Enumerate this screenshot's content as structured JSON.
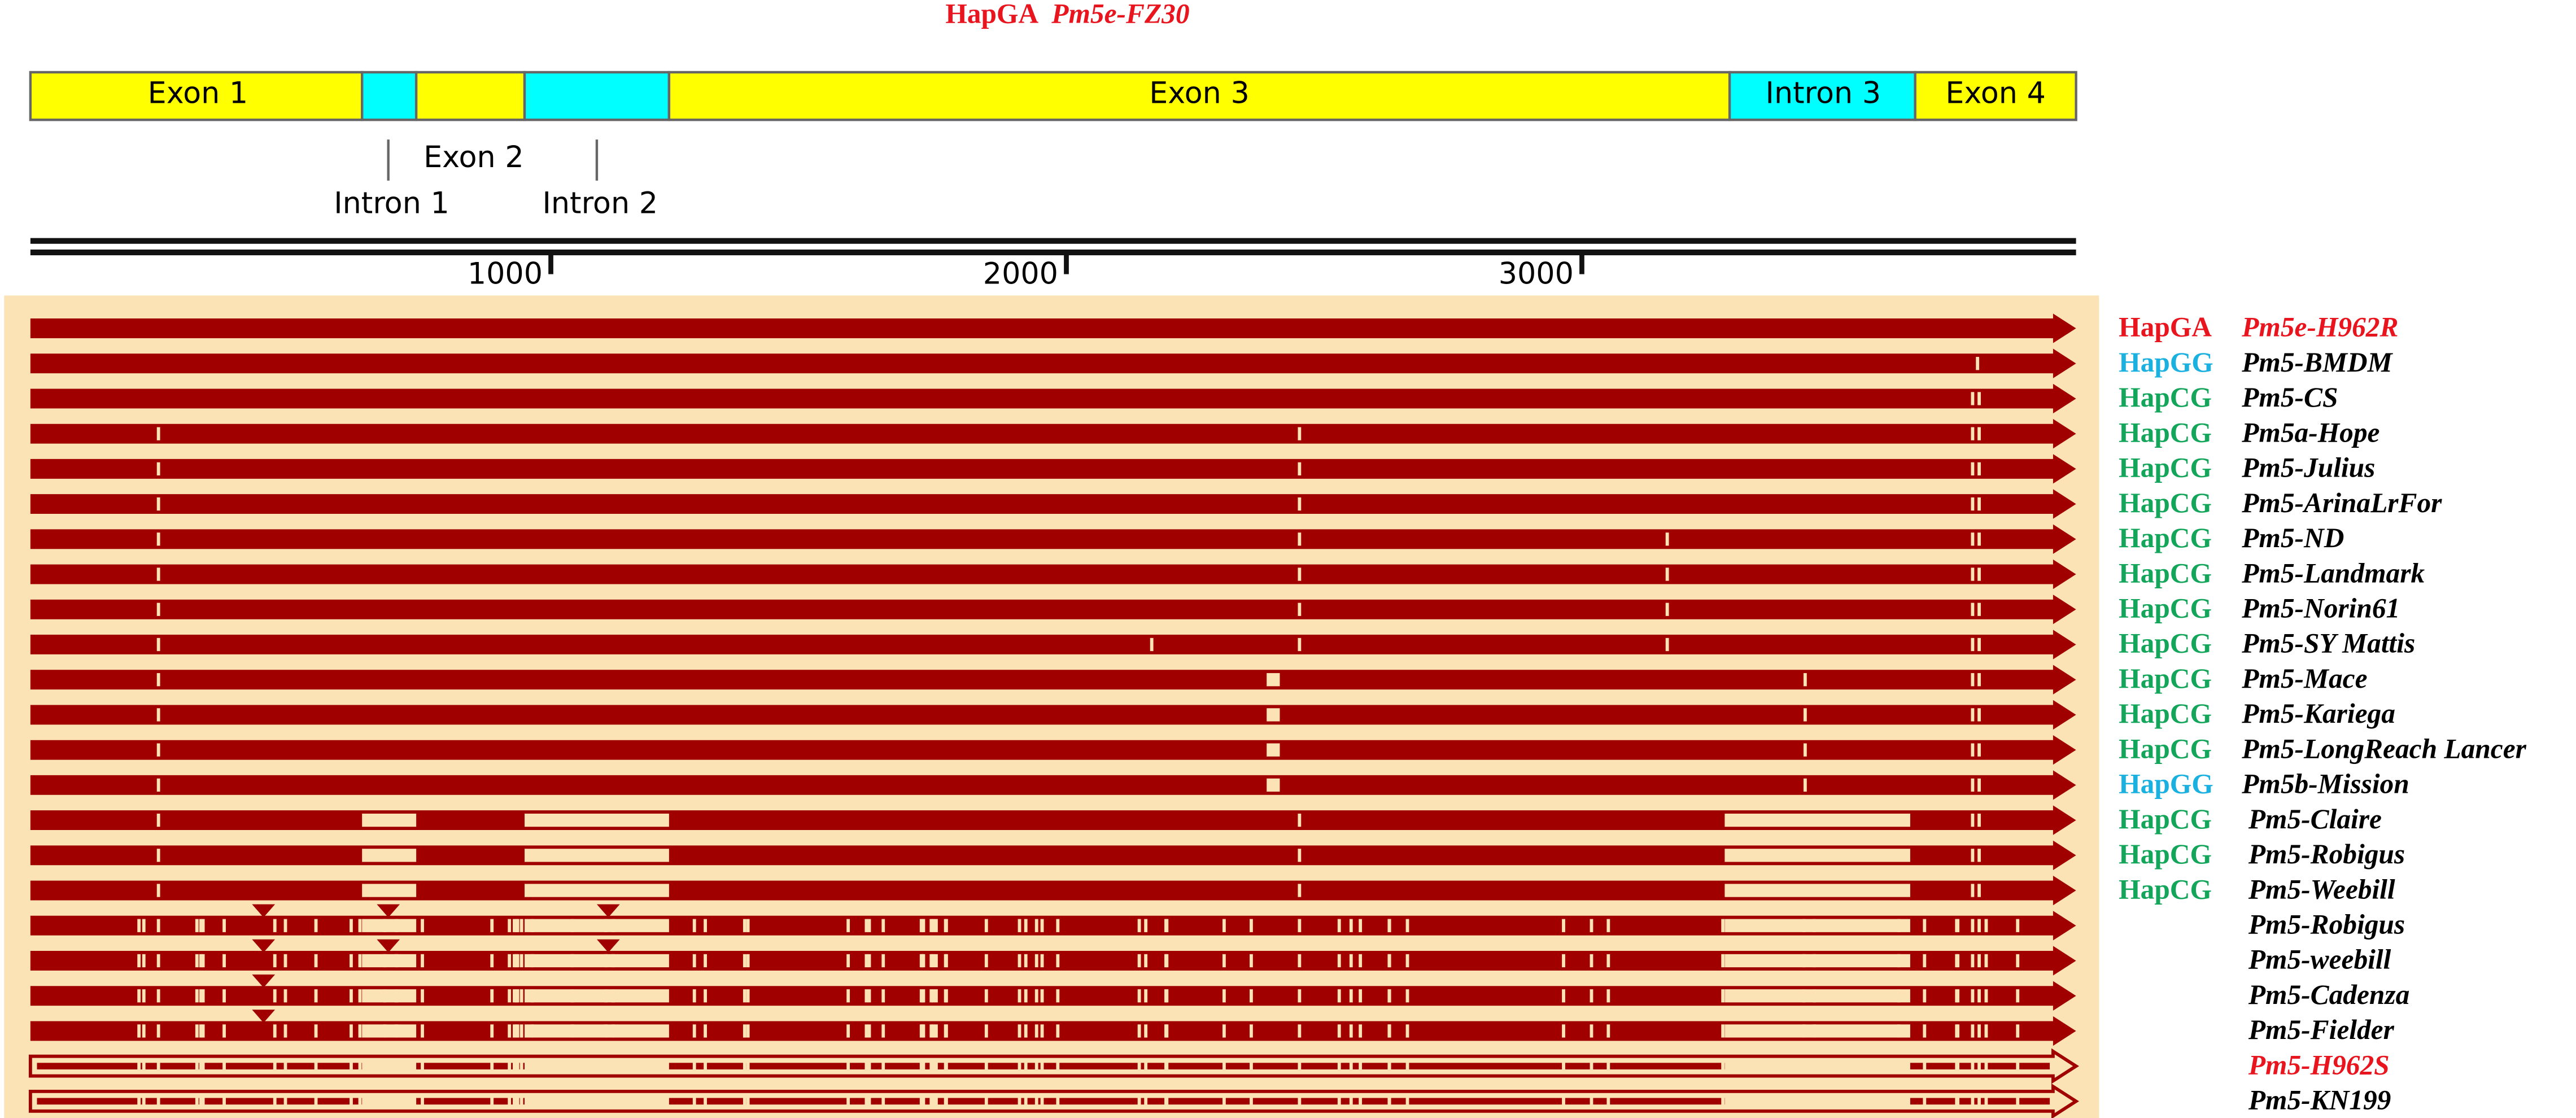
{
  "title": {
    "haplotype": "HapGA",
    "name": "Pm5e-FZ30",
    "color": "#e8141e"
  },
  "gene_structure": {
    "exon_1": "Exon 1",
    "exon_2": "Exon 2",
    "exon_3": "Exon 3",
    "exon_4": "Exon 4",
    "intron_1": "Intron 1",
    "intron_2": "Intron 2",
    "intron_3": "Intron 3"
  },
  "ruler_ticks": [
    1000,
    2000,
    3000
  ],
  "rows": [
    {
      "haplotype": "HapGA",
      "name": "Pm5e-H962R",
      "hap_color": "#e8141e",
      "name_color": "#e8141e"
    },
    {
      "haplotype": "HapGG",
      "name": "Pm5-BMDM",
      "hap_color": "#1ab0e0",
      "name_color": "#000000"
    },
    {
      "haplotype": "HapCG",
      "name": "Pm5-CS",
      "hap_color": "#13a55a",
      "name_color": "#000000"
    },
    {
      "haplotype": "HapCG",
      "name": "Pm5a-Hope",
      "hap_color": "#13a55a",
      "name_color": "#000000"
    },
    {
      "haplotype": "HapCG",
      "name": "Pm5-Julius",
      "hap_color": "#13a55a",
      "name_color": "#000000"
    },
    {
      "haplotype": "HapCG",
      "name": "Pm5-ArinaLrFor",
      "hap_color": "#13a55a",
      "name_color": "#000000"
    },
    {
      "haplotype": "HapCG",
      "name": "Pm5-ND",
      "hap_color": "#13a55a",
      "name_color": "#000000"
    },
    {
      "haplotype": "HapCG",
      "name": "Pm5-Landmark",
      "hap_color": "#13a55a",
      "name_color": "#000000"
    },
    {
      "haplotype": "HapCG",
      "name": "Pm5-Norin61",
      "hap_color": "#13a55a",
      "name_color": "#000000"
    },
    {
      "haplotype": "HapCG",
      "name": "Pm5-SY Mattis",
      "hap_color": "#13a55a",
      "name_color": "#000000"
    },
    {
      "haplotype": "HapCG",
      "name": "Pm5-Mace",
      "hap_color": "#13a55a",
      "name_color": "#000000"
    },
    {
      "haplotype": "HapCG",
      "name": "Pm5-Kariega",
      "hap_color": "#13a55a",
      "name_color": "#000000"
    },
    {
      "haplotype": "HapCG",
      "name": "Pm5-LongReach Lancer",
      "hap_color": "#13a55a",
      "name_color": "#000000"
    },
    {
      "haplotype": "HapGG",
      "name": "Pm5b-Mission",
      "hap_color": "#1ab0e0",
      "name_color": "#000000"
    },
    {
      "haplotype": "HapCG",
      "name": "Pm5-Claire",
      "hap_color": "#13a55a",
      "name_color": "#000000"
    },
    {
      "haplotype": "HapCG",
      "name": "Pm5-Robigus",
      "hap_color": "#13a55a",
      "name_color": "#000000"
    },
    {
      "haplotype": "HapCG",
      "name": "Pm5-Weebill",
      "hap_color": "#13a55a",
      "name_color": "#000000"
    },
    {
      "name": "Pm5-Robigus",
      "name_color": "#000000"
    },
    {
      "name": "Pm5-weebill",
      "name_color": "#000000"
    },
    {
      "name": "Pm5-Cadenza",
      "name_color": "#000000"
    },
    {
      "name": "Pm5-Fielder",
      "name_color": "#000000"
    },
    {
      "name": "Pm5-H962S",
      "name_color": "#e8141e"
    },
    {
      "name": "Pm5-KN199",
      "name_color": "#000000"
    }
  ]
}
